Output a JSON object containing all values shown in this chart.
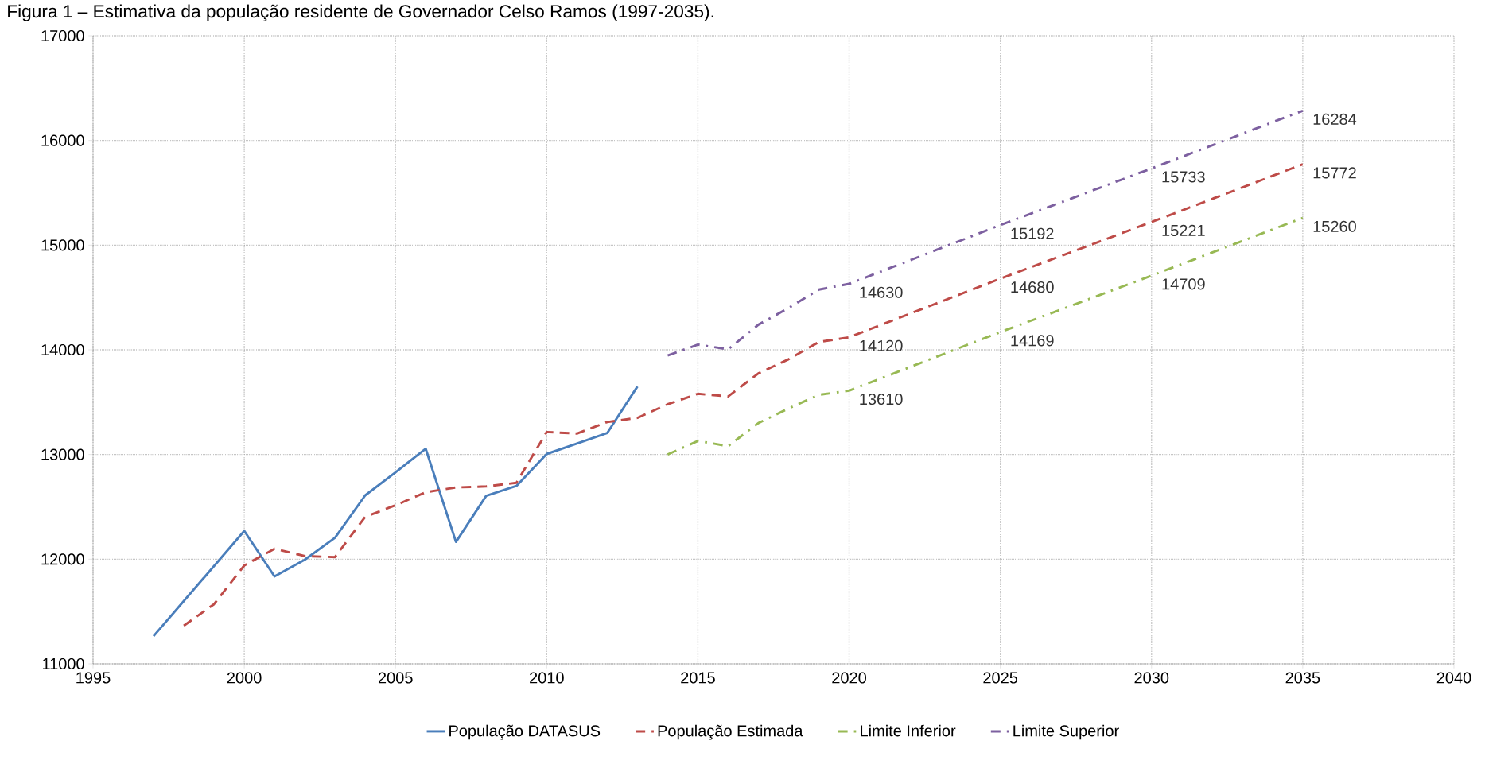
{
  "chart_data": {
    "type": "line",
    "title": "Figura 1 – Estimativa da população residente de Governador Celso Ramos (1997-2035).",
    "xlim": [
      1995,
      2040
    ],
    "xticks": [
      1995,
      2000,
      2005,
      2010,
      2015,
      2020,
      2025,
      2030,
      2035,
      2040
    ],
    "ylim": [
      11000,
      17000
    ],
    "yticks": [
      11000,
      12000,
      13000,
      14000,
      15000,
      16000,
      17000
    ],
    "grid": true,
    "legend": "bottom",
    "marker": "none",
    "series": [
      {
        "name": "População DATASUS",
        "color": "#4a7ebb",
        "line_style": "solid",
        "x": [
          1997,
          1998,
          1999,
          2000,
          2001,
          2002,
          2003,
          2004,
          2005,
          2006,
          2007,
          2008,
          2009,
          2010,
          2011,
          2012,
          2013
        ],
        "values": [
          11265,
          11600,
          11935,
          12270,
          11835,
          11995,
          12205,
          12610,
          12830,
          13055,
          12165,
          12605,
          12700,
          13005,
          13105,
          13205,
          13650
        ]
      },
      {
        "name": "População Estimada",
        "color": "#be4b48",
        "line_style": "dashed",
        "x": [
          1998,
          1999,
          2000,
          2001,
          2002,
          2003,
          2004,
          2005,
          2006,
          2007,
          2008,
          2009,
          2010,
          2011,
          2012,
          2013,
          2014,
          2015,
          2016,
          2017,
          2018,
          2019,
          2020,
          2021,
          2022,
          2023,
          2024,
          2025,
          2026,
          2027,
          2028,
          2029,
          2030,
          2031,
          2032,
          2033,
          2034,
          2035
        ],
        "values": [
          11365,
          11570,
          11940,
          12100,
          12030,
          12020,
          12405,
          12515,
          12640,
          12685,
          12695,
          12730,
          13215,
          13200,
          13310,
          13350,
          13480,
          13580,
          13555,
          13775,
          13910,
          14075,
          14120,
          14232,
          14344,
          14456,
          14568,
          14680,
          14788,
          14896,
          15004,
          15113,
          15221,
          15331,
          15441,
          15551,
          15662,
          15772
        ],
        "value_labels": [
          null,
          null,
          null,
          null,
          null,
          null,
          null,
          null,
          null,
          null,
          null,
          null,
          null,
          null,
          null,
          null,
          null,
          null,
          null,
          null,
          null,
          null,
          "14120",
          null,
          null,
          null,
          null,
          "14680",
          null,
          null,
          null,
          null,
          "15221",
          null,
          null,
          null,
          null,
          "15772"
        ]
      },
      {
        "name": "Limite Inferior",
        "color": "#98b954",
        "line_style": "dashdot",
        "x": [
          2014,
          2015,
          2016,
          2017,
          2018,
          2019,
          2020,
          2021,
          2022,
          2023,
          2024,
          2025,
          2026,
          2027,
          2028,
          2029,
          2030,
          2031,
          2032,
          2033,
          2034,
          2035
        ],
        "values": [
          13000,
          13130,
          13080,
          13300,
          13440,
          13570,
          13610,
          13722,
          13834,
          13946,
          14058,
          14169,
          14277,
          14385,
          14493,
          14601,
          14709,
          14819,
          14929,
          15039,
          15150,
          15260
        ],
        "value_labels": [
          null,
          null,
          null,
          null,
          null,
          null,
          "13610",
          null,
          null,
          null,
          null,
          "14169",
          null,
          null,
          null,
          null,
          "14709",
          null,
          null,
          null,
          null,
          "15260"
        ]
      },
      {
        "name": "Limite Superior",
        "color": "#7d60a0",
        "line_style": "dashdot",
        "x": [
          2014,
          2015,
          2016,
          2017,
          2018,
          2019,
          2020,
          2021,
          2022,
          2023,
          2024,
          2025,
          2026,
          2027,
          2028,
          2029,
          2030,
          2031,
          2032,
          2033,
          2034,
          2035
        ],
        "values": [
          13945,
          14050,
          14005,
          14240,
          14400,
          14575,
          14630,
          14742,
          14854,
          14967,
          15079,
          15192,
          15300,
          15408,
          15517,
          15625,
          15733,
          15843,
          15953,
          16064,
          16174,
          16284
        ],
        "value_labels": [
          null,
          null,
          null,
          null,
          null,
          null,
          "14630",
          null,
          null,
          null,
          null,
          "15192",
          null,
          null,
          null,
          null,
          "15733",
          null,
          null,
          null,
          null,
          "16284"
        ]
      }
    ]
  }
}
